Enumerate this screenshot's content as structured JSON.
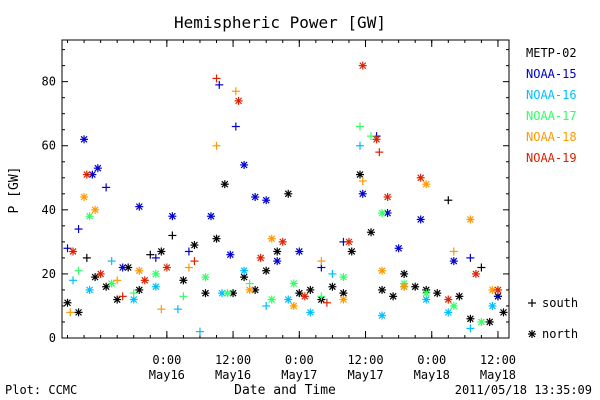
{
  "chart_data": {
    "type": "scatter",
    "title": "Hemispheric Power [GW]",
    "ylabel": "P [GW]",
    "xlabel": "Date and Time",
    "xlim": [
      "2011-05-15T05:00",
      "2011-05-18T14:00"
    ],
    "ylim": [
      0,
      93
    ],
    "yticks": [
      0,
      20,
      40,
      60,
      80
    ],
    "xticks": [
      {
        "time": "2011-05-16T00:00",
        "label1": "0:00",
        "label2": "May16"
      },
      {
        "time": "2011-05-16T12:00",
        "label1": "12:00",
        "label2": "May16"
      },
      {
        "time": "2011-05-17T00:00",
        "label1": "0:00",
        "label2": "May17"
      },
      {
        "time": "2011-05-17T12:00",
        "label1": "12:00",
        "label2": "May17"
      },
      {
        "time": "2011-05-18T00:00",
        "label1": "0:00",
        "label2": "May18"
      },
      {
        "time": "2011-05-18T12:00",
        "label1": "12:00",
        "label2": "May18"
      }
    ],
    "grid": false,
    "legend_position": "right",
    "marker_legend": [
      {
        "symbol": "+",
        "label": "south"
      },
      {
        "symbol": "*",
        "label": "north"
      }
    ],
    "series": [
      {
        "name": "METP-02",
        "color": "#000000",
        "points": [
          {
            "x": "2011-05-15T06:00",
            "y": 11,
            "hemi": "north"
          },
          {
            "x": "2011-05-15T08:00",
            "y": 8,
            "hemi": "north"
          },
          {
            "x": "2011-05-15T09:30",
            "y": 25,
            "hemi": "south"
          },
          {
            "x": "2011-05-15T11:00",
            "y": 19,
            "hemi": "north"
          },
          {
            "x": "2011-05-15T13:00",
            "y": 16,
            "hemi": "north"
          },
          {
            "x": "2011-05-15T15:00",
            "y": 12,
            "hemi": "north"
          },
          {
            "x": "2011-05-15T17:00",
            "y": 22,
            "hemi": "north"
          },
          {
            "x": "2011-05-15T19:00",
            "y": 15,
            "hemi": "north"
          },
          {
            "x": "2011-05-15T21:00",
            "y": 26,
            "hemi": "south"
          },
          {
            "x": "2011-05-15T23:00",
            "y": 27,
            "hemi": "north"
          },
          {
            "x": "2011-05-16T01:00",
            "y": 32,
            "hemi": "south"
          },
          {
            "x": "2011-05-16T03:00",
            "y": 18,
            "hemi": "north"
          },
          {
            "x": "2011-05-16T05:00",
            "y": 29,
            "hemi": "north"
          },
          {
            "x": "2011-05-16T07:00",
            "y": 14,
            "hemi": "north"
          },
          {
            "x": "2011-05-16T09:00",
            "y": 31,
            "hemi": "north"
          },
          {
            "x": "2011-05-16T10:30",
            "y": 48,
            "hemi": "north"
          },
          {
            "x": "2011-05-16T12:00",
            "y": 14,
            "hemi": "north"
          },
          {
            "x": "2011-05-16T14:00",
            "y": 19,
            "hemi": "north"
          },
          {
            "x": "2011-05-16T16:00",
            "y": 15,
            "hemi": "north"
          },
          {
            "x": "2011-05-16T18:00",
            "y": 21,
            "hemi": "north"
          },
          {
            "x": "2011-05-16T20:00",
            "y": 27,
            "hemi": "north"
          },
          {
            "x": "2011-05-16T22:00",
            "y": 45,
            "hemi": "north"
          },
          {
            "x": "2011-05-17T00:00",
            "y": 14,
            "hemi": "north"
          },
          {
            "x": "2011-05-17T02:00",
            "y": 15,
            "hemi": "north"
          },
          {
            "x": "2011-05-17T04:00",
            "y": 12,
            "hemi": "north"
          },
          {
            "x": "2011-05-17T06:00",
            "y": 16,
            "hemi": "north"
          },
          {
            "x": "2011-05-17T08:00",
            "y": 14,
            "hemi": "north"
          },
          {
            "x": "2011-05-17T09:30",
            "y": 27,
            "hemi": "north"
          },
          {
            "x": "2011-05-17T11:00",
            "y": 51,
            "hemi": "north"
          },
          {
            "x": "2011-05-17T13:00",
            "y": 33,
            "hemi": "north"
          },
          {
            "x": "2011-05-17T15:00",
            "y": 15,
            "hemi": "north"
          },
          {
            "x": "2011-05-17T17:00",
            "y": 13,
            "hemi": "north"
          },
          {
            "x": "2011-05-17T19:00",
            "y": 20,
            "hemi": "north"
          },
          {
            "x": "2011-05-17T21:00",
            "y": 16,
            "hemi": "north"
          },
          {
            "x": "2011-05-17T23:00",
            "y": 15,
            "hemi": "north"
          },
          {
            "x": "2011-05-18T01:00",
            "y": 14,
            "hemi": "north"
          },
          {
            "x": "2011-05-18T03:00",
            "y": 43,
            "hemi": "south"
          },
          {
            "x": "2011-05-18T05:00",
            "y": 13,
            "hemi": "north"
          },
          {
            "x": "2011-05-18T07:00",
            "y": 6,
            "hemi": "north"
          },
          {
            "x": "2011-05-18T09:00",
            "y": 22,
            "hemi": "south"
          },
          {
            "x": "2011-05-18T10:30",
            "y": 5,
            "hemi": "north"
          },
          {
            "x": "2011-05-18T12:00",
            "y": 13,
            "hemi": "north"
          },
          {
            "x": "2011-05-18T13:00",
            "y": 8,
            "hemi": "north"
          }
        ]
      },
      {
        "name": "NOAA-15",
        "color": "#0000cc",
        "points": [
          {
            "x": "2011-05-15T06:00",
            "y": 28,
            "hemi": "south"
          },
          {
            "x": "2011-05-15T08:00",
            "y": 34,
            "hemi": "south"
          },
          {
            "x": "2011-05-15T09:00",
            "y": 62,
            "hemi": "north"
          },
          {
            "x": "2011-05-15T10:30",
            "y": 51,
            "hemi": "north"
          },
          {
            "x": "2011-05-15T11:30",
            "y": 53,
            "hemi": "north"
          },
          {
            "x": "2011-05-15T13:00",
            "y": 47,
            "hemi": "south"
          },
          {
            "x": "2011-05-15T16:00",
            "y": 22,
            "hemi": "north"
          },
          {
            "x": "2011-05-15T19:00",
            "y": 41,
            "hemi": "north"
          },
          {
            "x": "2011-05-15T22:00",
            "y": 25,
            "hemi": "south"
          },
          {
            "x": "2011-05-16T01:00",
            "y": 38,
            "hemi": "north"
          },
          {
            "x": "2011-05-16T04:00",
            "y": 27,
            "hemi": "south"
          },
          {
            "x": "2011-05-16T08:00",
            "y": 38,
            "hemi": "north"
          },
          {
            "x": "2011-05-16T09:30",
            "y": 79,
            "hemi": "south"
          },
          {
            "x": "2011-05-16T11:30",
            "y": 26,
            "hemi": "north"
          },
          {
            "x": "2011-05-16T12:30",
            "y": 66,
            "hemi": "south"
          },
          {
            "x": "2011-05-16T14:00",
            "y": 54,
            "hemi": "north"
          },
          {
            "x": "2011-05-16T16:00",
            "y": 44,
            "hemi": "north"
          },
          {
            "x": "2011-05-16T18:00",
            "y": 43,
            "hemi": "north"
          },
          {
            "x": "2011-05-16T20:00",
            "y": 24,
            "hemi": "north"
          },
          {
            "x": "2011-05-17T00:00",
            "y": 27,
            "hemi": "north"
          },
          {
            "x": "2011-05-17T04:00",
            "y": 22,
            "hemi": "south"
          },
          {
            "x": "2011-05-17T08:00",
            "y": 30,
            "hemi": "south"
          },
          {
            "x": "2011-05-17T11:30",
            "y": 45,
            "hemi": "north"
          },
          {
            "x": "2011-05-17T14:00",
            "y": 63,
            "hemi": "south"
          },
          {
            "x": "2011-05-17T16:00",
            "y": 39,
            "hemi": "north"
          },
          {
            "x": "2011-05-17T18:00",
            "y": 28,
            "hemi": "north"
          },
          {
            "x": "2011-05-17T22:00",
            "y": 37,
            "hemi": "north"
          },
          {
            "x": "2011-05-18T04:00",
            "y": 24,
            "hemi": "north"
          },
          {
            "x": "2011-05-18T07:00",
            "y": 25,
            "hemi": "south"
          },
          {
            "x": "2011-05-18T12:00",
            "y": 13,
            "hemi": "south"
          }
        ]
      },
      {
        "name": "NOAA-16",
        "color": "#00bfff",
        "points": [
          {
            "x": "2011-05-15T07:00",
            "y": 18,
            "hemi": "south"
          },
          {
            "x": "2011-05-15T10:00",
            "y": 15,
            "hemi": "north"
          },
          {
            "x": "2011-05-15T14:00",
            "y": 24,
            "hemi": "south"
          },
          {
            "x": "2011-05-15T18:00",
            "y": 12,
            "hemi": "north"
          },
          {
            "x": "2011-05-15T22:00",
            "y": 16,
            "hemi": "north"
          },
          {
            "x": "2011-05-16T02:00",
            "y": 9,
            "hemi": "south"
          },
          {
            "x": "2011-05-16T06:00",
            "y": 2,
            "hemi": "south"
          },
          {
            "x": "2011-05-16T10:00",
            "y": 14,
            "hemi": "north"
          },
          {
            "x": "2011-05-16T14:00",
            "y": 21,
            "hemi": "north"
          },
          {
            "x": "2011-05-16T18:00",
            "y": 10,
            "hemi": "south"
          },
          {
            "x": "2011-05-16T22:00",
            "y": 12,
            "hemi": "north"
          },
          {
            "x": "2011-05-17T02:00",
            "y": 8,
            "hemi": "north"
          },
          {
            "x": "2011-05-17T06:00",
            "y": 20,
            "hemi": "south"
          },
          {
            "x": "2011-05-17T11:00",
            "y": 60,
            "hemi": "south"
          },
          {
            "x": "2011-05-17T15:00",
            "y": 7,
            "hemi": "north"
          },
          {
            "x": "2011-05-17T19:00",
            "y": 16,
            "hemi": "north"
          },
          {
            "x": "2011-05-17T23:00",
            "y": 12,
            "hemi": "north"
          },
          {
            "x": "2011-05-18T03:00",
            "y": 8,
            "hemi": "north"
          },
          {
            "x": "2011-05-18T07:00",
            "y": 3,
            "hemi": "south"
          },
          {
            "x": "2011-05-18T11:00",
            "y": 10,
            "hemi": "north"
          }
        ]
      },
      {
        "name": "NOAA-17",
        "color": "#33ff66",
        "points": [
          {
            "x": "2011-05-15T08:00",
            "y": 21,
            "hemi": "south"
          },
          {
            "x": "2011-05-15T10:00",
            "y": 38,
            "hemi": "north"
          },
          {
            "x": "2011-05-15T14:00",
            "y": 17,
            "hemi": "north"
          },
          {
            "x": "2011-05-15T18:00",
            "y": 14,
            "hemi": "south"
          },
          {
            "x": "2011-05-15T22:00",
            "y": 20,
            "hemi": "north"
          },
          {
            "x": "2011-05-16T03:00",
            "y": 13,
            "hemi": "south"
          },
          {
            "x": "2011-05-16T07:00",
            "y": 19,
            "hemi": "north"
          },
          {
            "x": "2011-05-16T11:00",
            "y": 14,
            "hemi": "north"
          },
          {
            "x": "2011-05-16T15:00",
            "y": 17,
            "hemi": "south"
          },
          {
            "x": "2011-05-16T19:00",
            "y": 12,
            "hemi": "north"
          },
          {
            "x": "2011-05-16T23:00",
            "y": 17,
            "hemi": "north"
          },
          {
            "x": "2011-05-17T04:00",
            "y": 13,
            "hemi": "south"
          },
          {
            "x": "2011-05-17T08:00",
            "y": 19,
            "hemi": "north"
          },
          {
            "x": "2011-05-17T11:00",
            "y": 66,
            "hemi": "south"
          },
          {
            "x": "2011-05-17T13:00",
            "y": 63,
            "hemi": "south"
          },
          {
            "x": "2011-05-17T15:00",
            "y": 39,
            "hemi": "north"
          },
          {
            "x": "2011-05-17T19:00",
            "y": 17,
            "hemi": "north"
          },
          {
            "x": "2011-05-17T23:00",
            "y": 14,
            "hemi": "north"
          },
          {
            "x": "2011-05-18T04:00",
            "y": 10,
            "hemi": "north"
          },
          {
            "x": "2011-05-18T09:00",
            "y": 5,
            "hemi": "north"
          }
        ]
      },
      {
        "name": "NOAA-18",
        "color": "#ff9900",
        "points": [
          {
            "x": "2011-05-15T06:30",
            "y": 8,
            "hemi": "south"
          },
          {
            "x": "2011-05-15T09:00",
            "y": 44,
            "hemi": "north"
          },
          {
            "x": "2011-05-15T11:00",
            "y": 40,
            "hemi": "north"
          },
          {
            "x": "2011-05-15T15:00",
            "y": 18,
            "hemi": "south"
          },
          {
            "x": "2011-05-15T19:00",
            "y": 21,
            "hemi": "north"
          },
          {
            "x": "2011-05-15T23:00",
            "y": 9,
            "hemi": "south"
          },
          {
            "x": "2011-05-16T04:00",
            "y": 22,
            "hemi": "south"
          },
          {
            "x": "2011-05-16T09:00",
            "y": 60,
            "hemi": "south"
          },
          {
            "x": "2011-05-16T12:30",
            "y": 77,
            "hemi": "south"
          },
          {
            "x": "2011-05-16T15:00",
            "y": 15,
            "hemi": "north"
          },
          {
            "x": "2011-05-16T19:00",
            "y": 31,
            "hemi": "north"
          },
          {
            "x": "2011-05-16T23:00",
            "y": 10,
            "hemi": "north"
          },
          {
            "x": "2011-05-17T04:00",
            "y": 24,
            "hemi": "south"
          },
          {
            "x": "2011-05-17T08:00",
            "y": 12,
            "hemi": "north"
          },
          {
            "x": "2011-05-17T11:30",
            "y": 49,
            "hemi": "south"
          },
          {
            "x": "2011-05-17T15:00",
            "y": 21,
            "hemi": "north"
          },
          {
            "x": "2011-05-17T19:00",
            "y": 16,
            "hemi": "north"
          },
          {
            "x": "2011-05-17T23:00",
            "y": 48,
            "hemi": "north"
          },
          {
            "x": "2011-05-18T04:00",
            "y": 27,
            "hemi": "south"
          },
          {
            "x": "2011-05-18T07:00",
            "y": 37,
            "hemi": "north"
          },
          {
            "x": "2011-05-18T11:00",
            "y": 15,
            "hemi": "north"
          }
        ]
      },
      {
        "name": "NOAA-19",
        "color": "#dd2200",
        "points": [
          {
            "x": "2011-05-15T07:00",
            "y": 27,
            "hemi": "north"
          },
          {
            "x": "2011-05-15T09:30",
            "y": 51,
            "hemi": "north"
          },
          {
            "x": "2011-05-15T12:00",
            "y": 20,
            "hemi": "north"
          },
          {
            "x": "2011-05-15T16:00",
            "y": 13,
            "hemi": "south"
          },
          {
            "x": "2011-05-15T20:00",
            "y": 18,
            "hemi": "north"
          },
          {
            "x": "2011-05-16T00:00",
            "y": 22,
            "hemi": "north"
          },
          {
            "x": "2011-05-16T05:00",
            "y": 24,
            "hemi": "south"
          },
          {
            "x": "2011-05-16T09:00",
            "y": 81,
            "hemi": "south"
          },
          {
            "x": "2011-05-16T13:00",
            "y": 74,
            "hemi": "north"
          },
          {
            "x": "2011-05-16T17:00",
            "y": 25,
            "hemi": "north"
          },
          {
            "x": "2011-05-16T21:00",
            "y": 30,
            "hemi": "north"
          },
          {
            "x": "2011-05-17T01:00",
            "y": 13,
            "hemi": "north"
          },
          {
            "x": "2011-05-17T05:00",
            "y": 11,
            "hemi": "south"
          },
          {
            "x": "2011-05-17T09:00",
            "y": 30,
            "hemi": "north"
          },
          {
            "x": "2011-05-17T11:30",
            "y": 85,
            "hemi": "north"
          },
          {
            "x": "2011-05-17T14:00",
            "y": 62,
            "hemi": "north"
          },
          {
            "x": "2011-05-17T14:30",
            "y": 58,
            "hemi": "south"
          },
          {
            "x": "2011-05-17T16:00",
            "y": 44,
            "hemi": "north"
          },
          {
            "x": "2011-05-17T22:00",
            "y": 50,
            "hemi": "north"
          },
          {
            "x": "2011-05-18T03:00",
            "y": 12,
            "hemi": "north"
          },
          {
            "x": "2011-05-18T08:00",
            "y": 20,
            "hemi": "north"
          },
          {
            "x": "2011-05-18T12:00",
            "y": 15,
            "hemi": "north"
          }
        ]
      }
    ]
  },
  "footer": {
    "plot_credit": "Plot: CCMC",
    "timestamp": "2011/05/18 13:35:09"
  }
}
